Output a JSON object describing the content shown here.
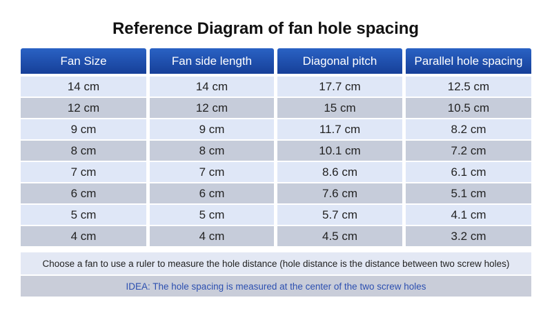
{
  "title": "Reference Diagram of fan hole spacing",
  "table": {
    "header": [
      "Fan Size",
      "Fan side length",
      "Diagonal pitch",
      "Parallel hole spacing"
    ],
    "rows": [
      [
        "14 cm",
        "14 cm",
        "17.7 cm",
        "12.5 cm"
      ],
      [
        "12 cm",
        "12 cm",
        "15 cm",
        "10.5 cm"
      ],
      [
        "9 cm",
        "9 cm",
        "11.7 cm",
        "8.2 cm"
      ],
      [
        "8 cm",
        "8 cm",
        "10.1 cm",
        "7.2 cm"
      ],
      [
        "7 cm",
        "7 cm",
        "8.6 cm",
        "6.1 cm"
      ],
      [
        "6 cm",
        "6 cm",
        "7.6 cm",
        "5.1 cm"
      ],
      [
        "5 cm",
        "5 cm",
        "5.7 cm",
        "4.1 cm"
      ],
      [
        "4 cm",
        "4 cm",
        "4.5 cm",
        "3.2 cm"
      ]
    ]
  },
  "notes": [
    "Choose a fan to use a ruler to measure the hole distance (hole distance is the distance between two screw holes)",
    "IDEA: The hole spacing is measured at the center of the two screw holes"
  ]
}
